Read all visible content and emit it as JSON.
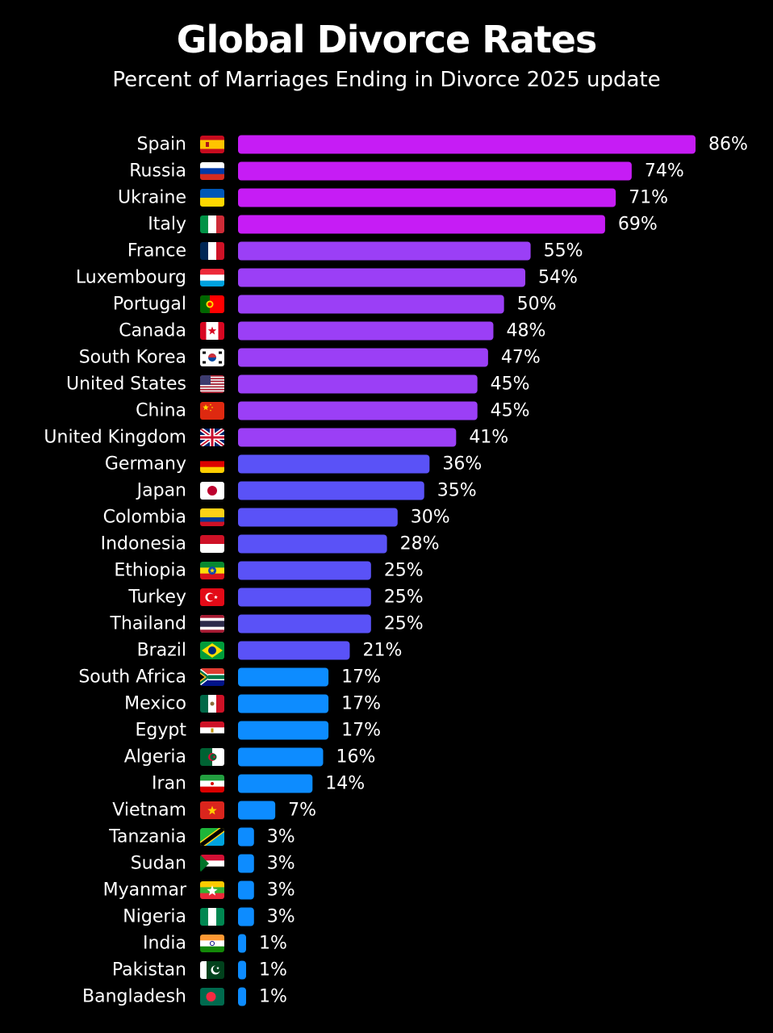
{
  "title": "Global Divorce Rates",
  "subtitle": "Percent of Marriages Ending in Divorce 2025 update",
  "chart_data": {
    "type": "bar",
    "orientation": "horizontal",
    "title": "Global Divorce Rates",
    "subtitle": "Percent of Marriages Ending in Divorce 2025 update",
    "xlabel": "",
    "ylabel": "",
    "grid": false,
    "xlim": [
      0,
      86
    ],
    "categories": [
      "Spain",
      "Russia",
      "Ukraine",
      "Italy",
      "France",
      "Luxembourg",
      "Portugal",
      "Canada",
      "South Korea",
      "United States",
      "China",
      "United Kingdom",
      "Germany",
      "Japan",
      "Colombia",
      "Indonesia",
      "Ethiopia",
      "Turkey",
      "Thailand",
      "Brazil",
      "South Africa",
      "Mexico",
      "Egypt",
      "Algeria",
      "Iran",
      "Vietnam",
      "Tanzania",
      "Sudan",
      "Myanmar",
      "Nigeria",
      "India",
      "Pakistan",
      "Bangladesh"
    ],
    "values": [
      86,
      74,
      71,
      69,
      55,
      54,
      50,
      48,
      47,
      45,
      45,
      41,
      36,
      35,
      30,
      28,
      25,
      25,
      25,
      21,
      17,
      17,
      17,
      16,
      14,
      7,
      3,
      3,
      3,
      3,
      1,
      1,
      1
    ],
    "value_labels": [
      "86%",
      "74%",
      "71%",
      "69%",
      "55%",
      "54%",
      "50%",
      "48%",
      "47%",
      "45%",
      "45%",
      "41%",
      "36%",
      "35%",
      "30%",
      "28%",
      "25%",
      "25%",
      "25%",
      "21%",
      "17%",
      "17%",
      "17%",
      "16%",
      "14%",
      "7%",
      "3%",
      "3%",
      "3%",
      "3%",
      "1%",
      "1%",
      "1%"
    ],
    "flag_icons": [
      "spain-flag-icon",
      "russia-flag-icon",
      "ukraine-flag-icon",
      "italy-flag-icon",
      "france-flag-icon",
      "luxembourg-flag-icon",
      "portugal-flag-icon",
      "canada-flag-icon",
      "south-korea-flag-icon",
      "united-states-flag-icon",
      "china-flag-icon",
      "united-kingdom-flag-icon",
      "germany-flag-icon",
      "japan-flag-icon",
      "colombia-flag-icon",
      "indonesia-flag-icon",
      "ethiopia-flag-icon",
      "turkey-flag-icon",
      "thailand-flag-icon",
      "brazil-flag-icon",
      "south-africa-flag-icon",
      "mexico-flag-icon",
      "egypt-flag-icon",
      "algeria-flag-icon",
      "iran-flag-icon",
      "vietnam-flag-icon",
      "tanzania-flag-icon",
      "sudan-flag-icon",
      "myanmar-flag-icon",
      "nigeria-flag-icon",
      "india-flag-icon",
      "pakistan-flag-icon",
      "bangladesh-flag-icon"
    ],
    "colors": {
      "background": "#000000",
      "text": "#ffffff",
      "bar_tier_1": "#c61cf5",
      "bar_tier_2": "#9b3ff6",
      "bar_tier_3": "#5a52f7",
      "bar_tier_4": "#0d8cff"
    },
    "color_tiers": [
      60,
      40,
      20
    ]
  }
}
